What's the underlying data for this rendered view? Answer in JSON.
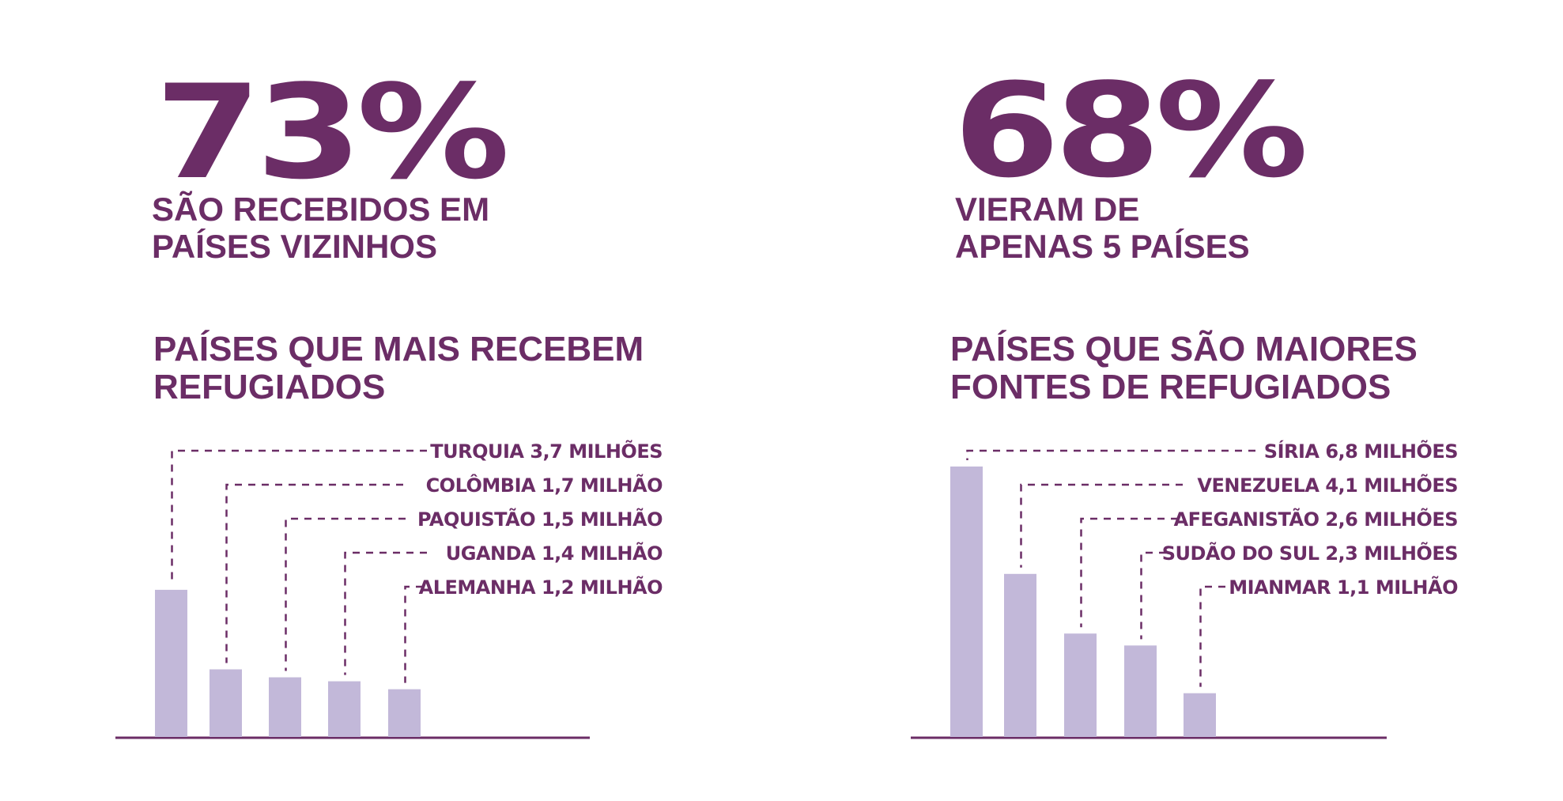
{
  "colors": {
    "primary": "#6b2d66",
    "bar": "#c2b8d9",
    "background": "#ffffff"
  },
  "left": {
    "stat_value": "73%",
    "stat_text": [
      "SÃO RECEBIDOS EM",
      "PAÍSES VIZINHOS"
    ],
    "chart_title": [
      "PAÍSES QUE MAIS RECEBEM",
      "REFUGIADOS"
    ]
  },
  "right": {
    "stat_value": "68%",
    "stat_text": [
      "VIERAM DE",
      "APENAS 5 PAÍSES"
    ],
    "chart_title": [
      "PAÍSES QUE SÃO MAIORES",
      "FONTES DE REFUGIADOS"
    ]
  },
  "chart_data": [
    {
      "type": "bar",
      "title": "PAÍSES QUE MAIS RECEBEM REFUGIADOS",
      "unit": "milhões",
      "categories": [
        "TURQUIA",
        "COLÔMBIA",
        "PAQUISTÃO",
        "UGANDA",
        "ALEMANHA"
      ],
      "values": [
        3.7,
        1.7,
        1.5,
        1.4,
        1.2
      ],
      "labels": [
        "TURQUIA 3,7 MILHÕES",
        "COLÔMBIA 1,7 MILHÃO",
        "PAQUISTÃO 1,5 MILHÃO",
        "UGANDA 1,4 MILHÃO",
        "ALEMANHA 1,2 MILHÃO"
      ],
      "ylim": [
        0,
        6.8
      ],
      "grid": false
    },
    {
      "type": "bar",
      "title": "PAÍSES QUE SÃO MAIORES FONTES DE REFUGIADOS",
      "unit": "milhões",
      "categories": [
        "SÍRIA",
        "VENEZUELA",
        "AFEGANISTÃO",
        "SUDÃO DO SUL",
        "MIANMAR"
      ],
      "values": [
        6.8,
        4.1,
        2.6,
        2.3,
        1.1
      ],
      "labels": [
        "SÍRIA 6,8 MILHÕES",
        "VENEZUELA 4,1 MILHÕES",
        "AFEGANISTÃO 2,6 MILHÕES",
        "SUDÃO DO SUL 2,3 MILHÕES",
        "MIANMAR 1,1 MILHÃO"
      ],
      "ylim": [
        0,
        6.8
      ],
      "grid": false
    }
  ]
}
